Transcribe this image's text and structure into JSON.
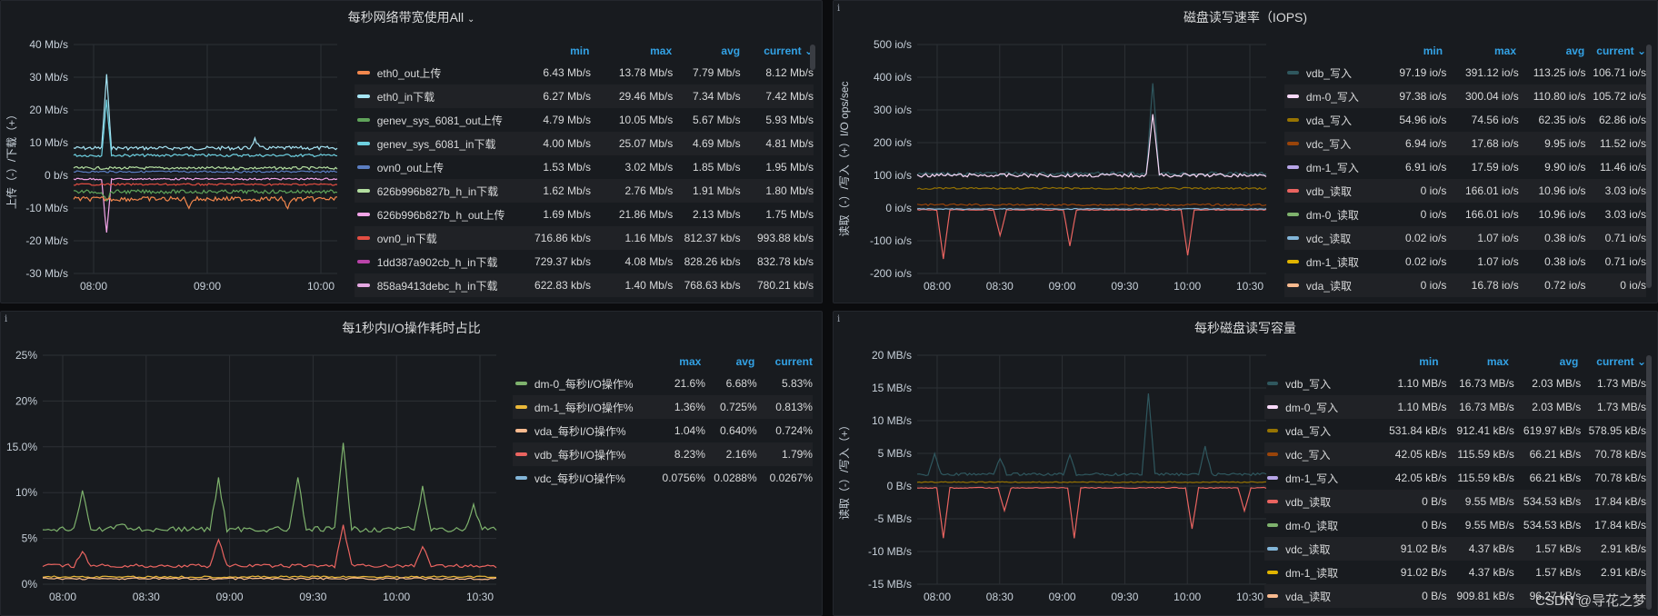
{
  "panels": [
    {
      "title": "每秒网络带宽使用All",
      "title_chevron": "chevron-down-icon",
      "ylabel": "上传（-）/下载（+）",
      "yticks": [
        "40 Mb/s",
        "30 Mb/s",
        "20 Mb/s",
        "10 Mb/s",
        "0 b/s",
        "-10 Mb/s",
        "-20 Mb/s",
        "-30 Mb/s"
      ],
      "xticks": [
        "08:00",
        "09:00",
        "10:00"
      ],
      "columns": [
        "min",
        "max",
        "avg",
        "current"
      ],
      "sort_column": "current",
      "rows": [
        {
          "name": "eth0_out上传",
          "color": "#f2874d",
          "min": "6.43 Mb/s",
          "max": "13.78 Mb/s",
          "avg": "7.79 Mb/s",
          "current": "8.12 Mb/s"
        },
        {
          "name": "eth0_in下载",
          "color": "#a6e5f5",
          "min": "6.27 Mb/s",
          "max": "29.46 Mb/s",
          "avg": "7.34 Mb/s",
          "current": "7.42 Mb/s"
        },
        {
          "name": "genev_sys_6081_out上传",
          "color": "#5fa35a",
          "min": "4.79 Mb/s",
          "max": "10.05 Mb/s",
          "avg": "5.67 Mb/s",
          "current": "5.93 Mb/s"
        },
        {
          "name": "genev_sys_6081_in下载",
          "color": "#6ed0e0",
          "min": "4.00 Mb/s",
          "max": "25.07 Mb/s",
          "avg": "4.69 Mb/s",
          "current": "4.81 Mb/s"
        },
        {
          "name": "ovn0_out上传",
          "color": "#5b7ec2",
          "min": "1.53 Mb/s",
          "max": "3.02 Mb/s",
          "avg": "1.85 Mb/s",
          "current": "1.95 Mb/s"
        },
        {
          "name": "626b996b827b_h_in下载",
          "color": "#b3dea0",
          "min": "1.62 Mb/s",
          "max": "2.76 Mb/s",
          "avg": "1.91 Mb/s",
          "current": "1.80 Mb/s"
        },
        {
          "name": "626b996b827b_h_out上传",
          "color": "#f3a4e8",
          "min": "1.69 Mb/s",
          "max": "21.86 Mb/s",
          "avg": "2.13 Mb/s",
          "current": "1.75 Mb/s"
        },
        {
          "name": "ovn0_in下载",
          "color": "#e24d42",
          "min": "716.86 kb/s",
          "max": "1.16 Mb/s",
          "avg": "812.37 kb/s",
          "current": "993.88 kb/s"
        },
        {
          "name": "1dd387a902cb_h_in下载",
          "color": "#ba43a9",
          "min": "729.37 kb/s",
          "max": "4.08 Mb/s",
          "avg": "828.26 kb/s",
          "current": "832.78 kb/s"
        },
        {
          "name": "858a9413debc_h_in下载",
          "color": "#e5a8e2",
          "min": "622.83 kb/s",
          "max": "1.40 Mb/s",
          "avg": "768.63 kb/s",
          "current": "780.21 kb/s"
        }
      ]
    },
    {
      "title": "磁盘读写速率（IOPS)",
      "ylabel": "读取（-）/写入（+）I/O ops/sec",
      "yticks": [
        "500 io/s",
        "400 io/s",
        "300 io/s",
        "200 io/s",
        "100 io/s",
        "0 io/s",
        "-100 io/s",
        "-200 io/s"
      ],
      "xticks": [
        "08:00",
        "08:30",
        "09:00",
        "09:30",
        "10:00",
        "10:30"
      ],
      "columns": [
        "min",
        "max",
        "avg",
        "current"
      ],
      "sort_column": "current",
      "rows": [
        {
          "name": "vdb_写入",
          "color": "#2f575e",
          "min": "97.19 io/s",
          "max": "391.12 io/s",
          "avg": "113.25 io/s",
          "current": "106.71 io/s"
        },
        {
          "name": "dm-0_写入",
          "color": "#f9d9f9",
          "min": "97.38 io/s",
          "max": "300.04 io/s",
          "avg": "110.80 io/s",
          "current": "105.72 io/s"
        },
        {
          "name": "vda_写入",
          "color": "#967302",
          "min": "54.96 io/s",
          "max": "74.56 io/s",
          "avg": "62.35 io/s",
          "current": "62.86 io/s"
        },
        {
          "name": "vdc_写入",
          "color": "#99440a",
          "min": "6.94 io/s",
          "max": "17.68 io/s",
          "avg": "9.95 io/s",
          "current": "11.52 io/s"
        },
        {
          "name": "dm-1_写入",
          "color": "#b7a5e8",
          "min": "6.91 io/s",
          "max": "17.59 io/s",
          "avg": "9.90 io/s",
          "current": "11.46 io/s"
        },
        {
          "name": "vdb_读取",
          "color": "#ea6460",
          "min": "0 io/s",
          "max": "166.01 io/s",
          "avg": "10.96 io/s",
          "current": "3.03 io/s"
        },
        {
          "name": "dm-0_读取",
          "color": "#7eb26d",
          "min": "0 io/s",
          "max": "166.01 io/s",
          "avg": "10.96 io/s",
          "current": "3.03 io/s"
        },
        {
          "name": "vdc_读取",
          "color": "#82b5d8",
          "min": "0.02 io/s",
          "max": "1.07 io/s",
          "avg": "0.38 io/s",
          "current": "0.71 io/s"
        },
        {
          "name": "dm-1_读取",
          "color": "#e0b400",
          "min": "0.02 io/s",
          "max": "1.07 io/s",
          "avg": "0.38 io/s",
          "current": "0.71 io/s"
        },
        {
          "name": "vda_读取",
          "color": "#f9ba8f",
          "min": "0 io/s",
          "max": "16.78 io/s",
          "avg": "0.72 io/s",
          "current": "0 io/s"
        }
      ]
    },
    {
      "title": "每1秒内I/O操作耗时占比",
      "ylabel": "",
      "yticks": [
        "25%",
        "20%",
        "15.0%",
        "10%",
        "5%",
        "0%"
      ],
      "xticks": [
        "08:00",
        "08:30",
        "09:00",
        "09:30",
        "10:00",
        "10:30"
      ],
      "columns": [
        "max",
        "avg",
        "current"
      ],
      "sort_column": "",
      "rows": [
        {
          "name": "dm-0_每秒I/O操作%",
          "color": "#7eb26d",
          "max": "21.6%",
          "avg": "6.68%",
          "current": "5.83%"
        },
        {
          "name": "dm-1_每秒I/O操作%",
          "color": "#eab839",
          "max": "1.36%",
          "avg": "0.725%",
          "current": "0.813%"
        },
        {
          "name": "vda_每秒I/O操作%",
          "color": "#f9ba8f",
          "max": "1.04%",
          "avg": "0.640%",
          "current": "0.724%"
        },
        {
          "name": "vdb_每秒I/O操作%",
          "color": "#ea6460",
          "max": "8.23%",
          "avg": "2.16%",
          "current": "1.79%"
        },
        {
          "name": "vdc_每秒I/O操作%",
          "color": "#82b5d8",
          "max": "0.0756%",
          "avg": "0.0288%",
          "current": "0.0267%"
        }
      ]
    },
    {
      "title": "每秒磁盘读写容量",
      "ylabel": "读取（-）/写入（+）",
      "yticks": [
        "20 MB/s",
        "15 MB/s",
        "10 MB/s",
        "5 MB/s",
        "0 B/s",
        "-5 MB/s",
        "-10 MB/s",
        "-15 MB/s"
      ],
      "xticks": [
        "08:00",
        "08:30",
        "09:00",
        "09:30",
        "10:00",
        "10:30"
      ],
      "columns": [
        "min",
        "max",
        "avg",
        "current"
      ],
      "sort_column": "current",
      "rows": [
        {
          "name": "vdb_写入",
          "color": "#2f575e",
          "min": "1.10 MB/s",
          "max": "16.73 MB/s",
          "avg": "2.03 MB/s",
          "current": "1.73 MB/s"
        },
        {
          "name": "dm-0_写入",
          "color": "#f9d9f9",
          "min": "1.10 MB/s",
          "max": "16.73 MB/s",
          "avg": "2.03 MB/s",
          "current": "1.73 MB/s"
        },
        {
          "name": "vda_写入",
          "color": "#967302",
          "min": "531.84 kB/s",
          "max": "912.41 kB/s",
          "avg": "619.97 kB/s",
          "current": "578.95 kB/s"
        },
        {
          "name": "vdc_写入",
          "color": "#99440a",
          "min": "42.05 kB/s",
          "max": "115.59 kB/s",
          "avg": "66.21 kB/s",
          "current": "70.78 kB/s"
        },
        {
          "name": "dm-1_写入",
          "color": "#b7a5e8",
          "min": "42.05 kB/s",
          "max": "115.59 kB/s",
          "avg": "66.21 kB/s",
          "current": "70.78 kB/s"
        },
        {
          "name": "vdb_读取",
          "color": "#ea6460",
          "min": "0 B/s",
          "max": "9.55 MB/s",
          "avg": "534.53 kB/s",
          "current": "17.84 kB/s"
        },
        {
          "name": "dm-0_读取",
          "color": "#7eb26d",
          "min": "0 B/s",
          "max": "9.55 MB/s",
          "avg": "534.53 kB/s",
          "current": "17.84 kB/s"
        },
        {
          "name": "vdc_读取",
          "color": "#82b5d8",
          "min": "91.02 B/s",
          "max": "4.37 kB/s",
          "avg": "1.57 kB/s",
          "current": "2.91 kB/s"
        },
        {
          "name": "dm-1_读取",
          "color": "#e0b400",
          "min": "91.02 B/s",
          "max": "4.37 kB/s",
          "avg": "1.57 kB/s",
          "current": "2.91 kB/s"
        },
        {
          "name": "vda_读取",
          "color": "#f9ba8f",
          "min": "0 B/s",
          "max": "909.81 kB/s",
          "avg": "96.27 kB/s",
          "current": ""
        }
      ]
    }
  ],
  "watermark": "CSDN @导花之梦"
}
